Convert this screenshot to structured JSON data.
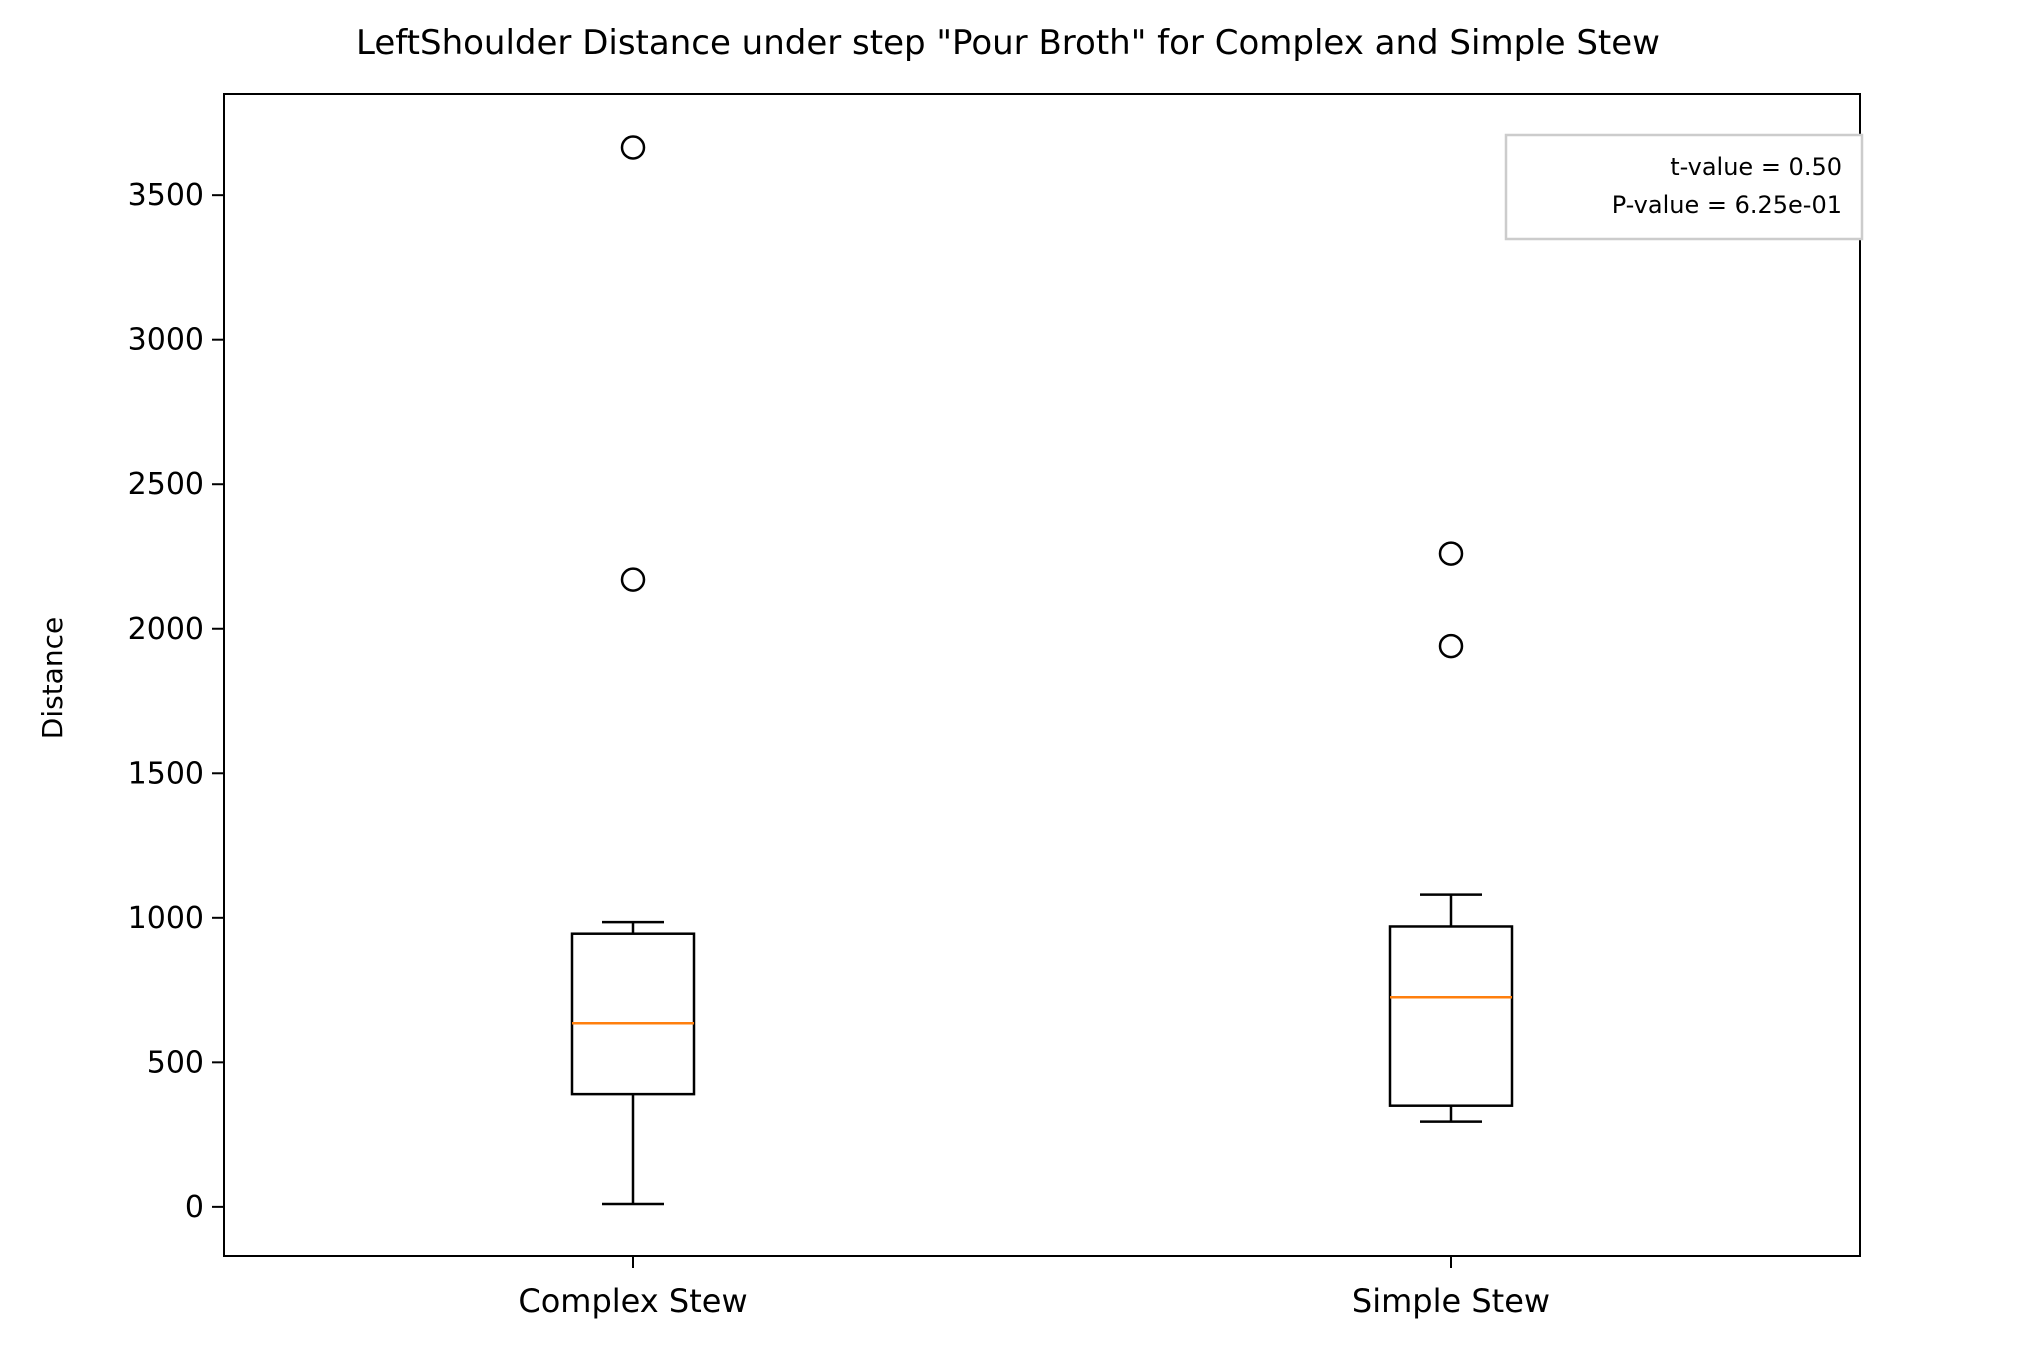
{
  "chart_data": {
    "type": "box",
    "title": "LeftShoulder Distance under step \"Pour Broth\" for Complex and Simple Stew",
    "xlabel": "",
    "ylabel": "Distance",
    "ylim": [
      -170,
      3850
    ],
    "yticks": [
      0,
      500,
      1000,
      1500,
      2000,
      2500,
      3000,
      3500
    ],
    "categories": [
      "Complex Stew",
      "Simple Stew"
    ],
    "boxes": [
      {
        "category": "Complex Stew",
        "whisker_low": 10,
        "q1": 390,
        "median": 635,
        "q3": 945,
        "whisker_high": 985,
        "outliers": [
          3665,
          2170
        ]
      },
      {
        "category": "Simple Stew",
        "whisker_low": 295,
        "q1": 350,
        "median": 725,
        "q3": 970,
        "whisker_high": 1080,
        "outliers": [
          2260,
          1940
        ]
      }
    ],
    "annotation": {
      "lines": [
        "t-value = 0.50",
        "P-value = 6.25e-01"
      ],
      "placement": "top-right"
    },
    "grid": false,
    "colors": {
      "box": "#000000",
      "median": "#ff7f0e",
      "annotation_border": "#cccccc"
    }
  }
}
